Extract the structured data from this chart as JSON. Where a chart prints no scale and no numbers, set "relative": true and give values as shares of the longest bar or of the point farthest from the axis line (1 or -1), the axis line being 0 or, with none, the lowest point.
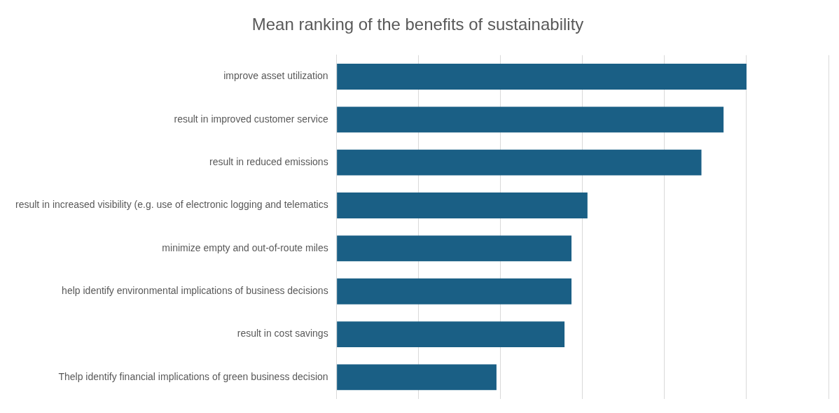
{
  "chart_data": {
    "type": "bar",
    "orientation": "horizontal",
    "relative": true,
    "title": "Mean ranking of the benefits of sustainability",
    "categories": [
      "improve asset utilization",
      "result in improved customer service",
      "result in reduced emissions",
      "result in increased visibility (e.g. use of electronic logging and telematics",
      "minimize empty and out-of-route miles",
      "help identify environmental implications of business decisions",
      "result in cost savings",
      "Thelp identify financial implications of green business decision"
    ],
    "values": [
      1,
      0.944,
      0.89,
      0.612,
      0.573,
      0.573,
      0.556,
      0.39
    ],
    "color": "#1a5f85",
    "grid": "x",
    "legend": false
  }
}
